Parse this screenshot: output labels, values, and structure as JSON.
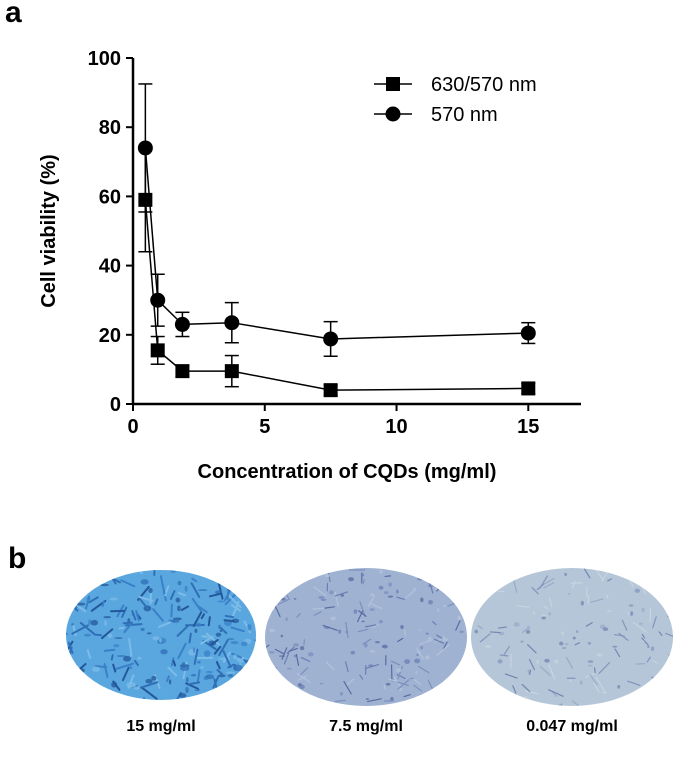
{
  "panels": {
    "a": "a",
    "b": "b"
  },
  "chart_data": {
    "type": "line",
    "xlabel": "Concentration of CQDs (mg/ml)",
    "ylabel": "Cell viability (%)",
    "xlim": [
      0,
      17
    ],
    "ylim": [
      0,
      100
    ],
    "xticks": [
      0,
      5,
      10,
      15
    ],
    "yticks": [
      0,
      20,
      40,
      60,
      80,
      100
    ],
    "legend_position": "top-right",
    "series": [
      {
        "name": "630/570 nm",
        "marker": "square",
        "x": [
          0.469,
          0.938,
          1.875,
          3.75,
          7.5,
          15
        ],
        "y": [
          59,
          15.5,
          9.5,
          9.5,
          4,
          4.5
        ],
        "err": [
          15,
          4,
          1.5,
          4.5,
          1.5,
          1.5
        ]
      },
      {
        "name": "570 nm",
        "marker": "circle",
        "x": [
          0.469,
          0.938,
          1.875,
          3.75,
          7.5,
          15
        ],
        "y": [
          74,
          30,
          23,
          23.5,
          18.8,
          20.5
        ],
        "err": [
          18.5,
          7.5,
          3.5,
          5.8,
          5,
          3
        ]
      }
    ]
  },
  "micrographs": [
    {
      "label": "15 mg/ml",
      "color": "#5aa7df"
    },
    {
      "label": "7.5 mg/ml",
      "color": "#9fb2d2"
    },
    {
      "label": "0.047 mg/ml",
      "color": "#b5c6d8"
    }
  ]
}
